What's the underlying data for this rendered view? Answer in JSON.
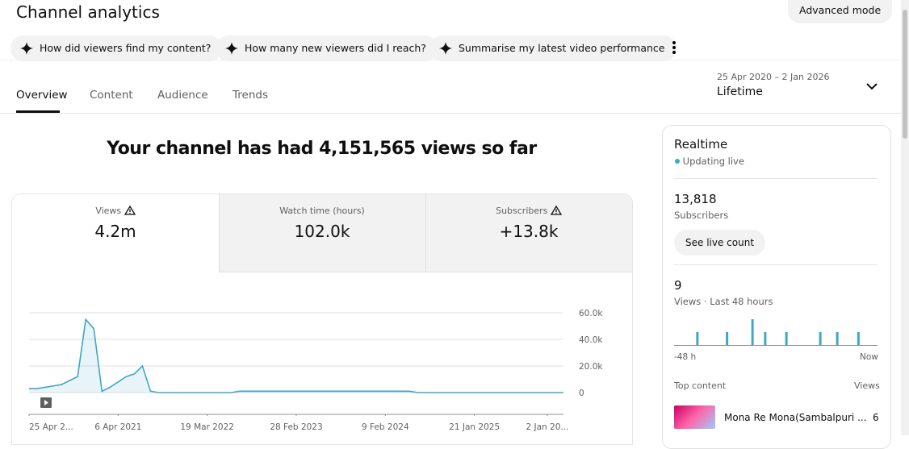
{
  "header": {
    "title": "Channel analytics",
    "advanced": "Advanced mode"
  },
  "suggestions": [
    "How did viewers find my content?",
    "How many new viewers did I reach?",
    "Summarise my latest video performance"
  ],
  "tabs": [
    "Overview",
    "Content",
    "Audience",
    "Trends"
  ],
  "date_range": {
    "range": "25 Apr 2020 – 2 Jan 2026",
    "label": "Lifetime"
  },
  "headline": "Your channel has had 4,151,565 views so far",
  "metrics": [
    {
      "label": "Views",
      "value": "4.2m"
    },
    {
      "label": "Watch time (hours)",
      "value": "102.0k"
    },
    {
      "label": "Subscribers",
      "value": "+13.8k"
    }
  ],
  "chart_data": {
    "type": "line",
    "color": "#3ea6c8",
    "values": [
      3000,
      3000,
      4000,
      5000,
      6000,
      9000,
      12000,
      55000,
      48000,
      1000,
      4000,
      8000,
      12000,
      14000,
      20000,
      1000,
      0,
      0,
      0,
      0,
      0,
      0,
      0,
      0,
      0,
      0,
      1000,
      1000,
      1000,
      1000,
      1000,
      1000,
      1000,
      1000,
      1000,
      1000,
      1000,
      1000,
      1000,
      1000,
      1000,
      1000,
      1000,
      1000,
      1000,
      1000,
      1000,
      1000,
      0,
      0,
      0,
      0,
      0,
      0,
      0,
      0,
      0,
      0,
      0,
      0,
      0,
      0,
      0,
      0,
      0,
      0,
      0
    ],
    "ylim": [
      0,
      60000
    ],
    "yticks": [
      0,
      {
        "value": 20000,
        "label": "20.0k"
      },
      {
        "value": 40000,
        "label": "40.0k"
      },
      {
        "value": 60000,
        "label": "60.0k"
      }
    ],
    "xticks": [
      {
        "value": 0,
        "label": "25 Apr 2..."
      },
      {
        "value": 11,
        "label": "6 Apr 2021"
      },
      {
        "value": 22,
        "label": "19 Mar 2022"
      },
      {
        "value": 33,
        "label": "28 Feb 2023"
      },
      {
        "value": 44,
        "label": "9 Feb 2024"
      },
      {
        "value": 55,
        "label": "21 Jan 2025"
      },
      {
        "value": 64,
        "label": "2 Jan 20..."
      }
    ],
    "grid": true
  },
  "realtime": {
    "title": "Realtime",
    "status": "Updating live",
    "subscribers": "13,818",
    "subscribers_label": "Subscribers",
    "button": "See live count",
    "views": "9",
    "views_label": "Views · Last 48 hours",
    "chart_data": {
      "type": "bar",
      "color": "#3ea6c8",
      "values": [
        0,
        0,
        0,
        0,
        0,
        1,
        0,
        0,
        0,
        0,
        0,
        0,
        1,
        0,
        0,
        0,
        0,
        0,
        2,
        0,
        0,
        1,
        0,
        0,
        0,
        0,
        1,
        0,
        0,
        0,
        0,
        0,
        0,
        0,
        1,
        0,
        0,
        0,
        1,
        0,
        0,
        0,
        0,
        1,
        0,
        0,
        0,
        0
      ],
      "ylim": [
        0,
        2
      ],
      "x_start": "-48 h",
      "x_end": "Now"
    },
    "top_content": "Top content",
    "views_header": "Views",
    "top_video": {
      "title": "Mona Re Mona(Sambalpuri ...",
      "views": "6"
    }
  }
}
